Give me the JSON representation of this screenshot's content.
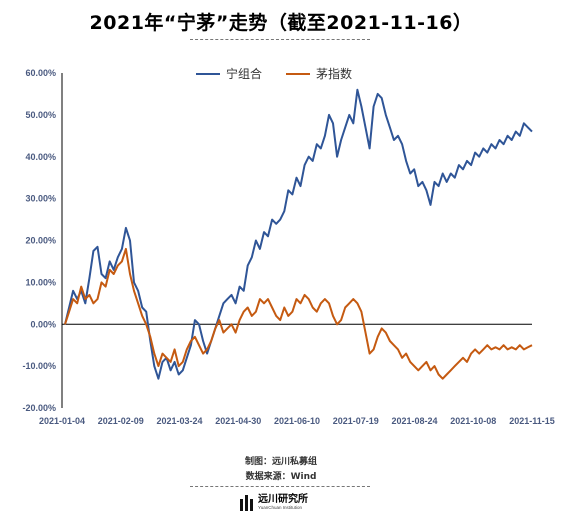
{
  "title": "2021年“宁茅”走势（截至2021-11-16）",
  "credits": {
    "made_by": "制图：远川私募组",
    "source": "数据来源：Wind"
  },
  "logo": {
    "name": "远川研究所",
    "sub": "YuanChuan Institution"
  },
  "colors": {
    "series_1": "#2f5597",
    "series_2": "#c55a11",
    "axis": "#000000"
  },
  "chart_data": {
    "type": "line",
    "title": "2021年“宁茅”走势（截至2021-11-16）",
    "xlabel": "",
    "ylabel": "",
    "legend_position": "top",
    "grid": false,
    "ylim": [
      -0.2,
      0.6
    ],
    "yticks": [
      "60.00%",
      "50.00%",
      "40.00%",
      "30.00%",
      "20.00%",
      "10.00%",
      "0.00%",
      "-10.00%",
      "-20.00%"
    ],
    "xticks": [
      "2021-01-04",
      "2021-02-09",
      "2021-03-24",
      "2021-04-30",
      "2021-06-10",
      "2021-07-19",
      "2021-08-24",
      "2021-10-08",
      "2021-11-15"
    ],
    "series": [
      {
        "name": "宁组合",
        "color": "#2f5597",
        "values": [
          0.0,
          0.04,
          0.08,
          0.06,
          0.08,
          0.05,
          0.11,
          0.175,
          0.185,
          0.12,
          0.11,
          0.15,
          0.13,
          0.16,
          0.18,
          0.23,
          0.2,
          0.1,
          0.08,
          0.04,
          0.03,
          -0.04,
          -0.1,
          -0.13,
          -0.09,
          -0.08,
          -0.11,
          -0.09,
          -0.12,
          -0.11,
          -0.08,
          -0.05,
          0.01,
          0.0,
          -0.04,
          -0.07,
          -0.04,
          -0.01,
          0.02,
          0.05,
          0.06,
          0.07,
          0.05,
          0.09,
          0.08,
          0.14,
          0.16,
          0.2,
          0.18,
          0.22,
          0.21,
          0.25,
          0.24,
          0.25,
          0.27,
          0.32,
          0.31,
          0.35,
          0.33,
          0.38,
          0.4,
          0.39,
          0.43,
          0.42,
          0.45,
          0.5,
          0.48,
          0.4,
          0.44,
          0.47,
          0.5,
          0.48,
          0.56,
          0.52,
          0.47,
          0.42,
          0.52,
          0.55,
          0.54,
          0.5,
          0.47,
          0.44,
          0.45,
          0.43,
          0.39,
          0.36,
          0.37,
          0.33,
          0.34,
          0.32,
          0.285,
          0.34,
          0.33,
          0.36,
          0.34,
          0.36,
          0.35,
          0.38,
          0.37,
          0.39,
          0.38,
          0.41,
          0.4,
          0.42,
          0.41,
          0.43,
          0.42,
          0.44,
          0.43,
          0.45,
          0.44,
          0.46,
          0.45,
          0.48,
          0.47,
          0.46
        ]
      },
      {
        "name": "茅指数",
        "color": "#c55a11",
        "values": [
          0.0,
          0.03,
          0.06,
          0.05,
          0.09,
          0.06,
          0.07,
          0.05,
          0.06,
          0.1,
          0.09,
          0.13,
          0.12,
          0.14,
          0.15,
          0.18,
          0.12,
          0.08,
          0.05,
          0.02,
          0.0,
          -0.03,
          -0.07,
          -0.1,
          -0.07,
          -0.08,
          -0.09,
          -0.06,
          -0.1,
          -0.09,
          -0.06,
          -0.04,
          -0.03,
          -0.05,
          -0.07,
          -0.06,
          -0.04,
          -0.01,
          0.01,
          -0.02,
          -0.01,
          0.0,
          -0.02,
          0.01,
          0.03,
          0.04,
          0.02,
          0.03,
          0.06,
          0.05,
          0.06,
          0.04,
          0.02,
          0.01,
          0.04,
          0.02,
          0.03,
          0.06,
          0.05,
          0.07,
          0.06,
          0.04,
          0.03,
          0.05,
          0.06,
          0.05,
          0.02,
          0.0,
          0.01,
          0.04,
          0.05,
          0.06,
          0.05,
          0.03,
          -0.02,
          -0.07,
          -0.06,
          -0.03,
          -0.01,
          -0.02,
          -0.04,
          -0.05,
          -0.06,
          -0.08,
          -0.07,
          -0.09,
          -0.1,
          -0.11,
          -0.1,
          -0.09,
          -0.11,
          -0.1,
          -0.12,
          -0.13,
          -0.12,
          -0.11,
          -0.1,
          -0.09,
          -0.08,
          -0.09,
          -0.07,
          -0.06,
          -0.07,
          -0.06,
          -0.05,
          -0.06,
          -0.055,
          -0.06,
          -0.05,
          -0.06,
          -0.055,
          -0.06,
          -0.05,
          -0.06,
          -0.055,
          -0.05
        ]
      }
    ]
  }
}
